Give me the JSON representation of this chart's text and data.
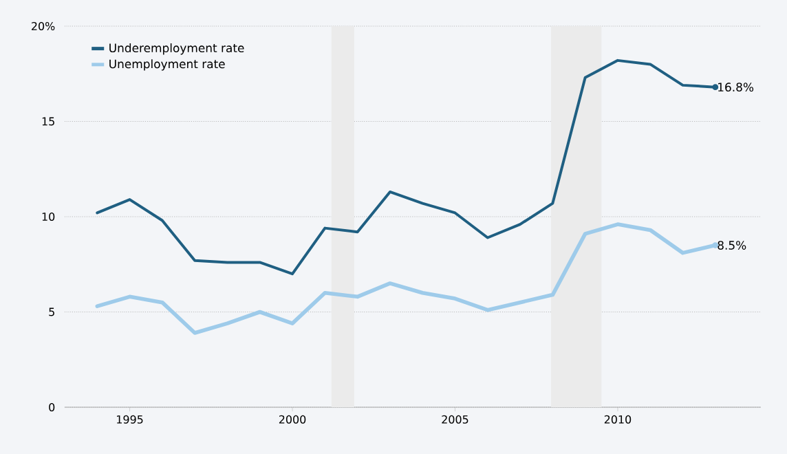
{
  "chart_data": {
    "type": "line",
    "x": [
      1994,
      1995,
      1996,
      1997,
      1998,
      1999,
      2000,
      2001,
      2002,
      2003,
      2004,
      2005,
      2006,
      2007,
      2008,
      2009,
      2010,
      2011,
      2012,
      2013
    ],
    "series": [
      {
        "name": "Underemployment rate",
        "color": "#1f5f82",
        "values": [
          10.2,
          10.9,
          9.8,
          7.7,
          7.6,
          7.6,
          7.0,
          9.4,
          9.2,
          11.3,
          10.7,
          10.2,
          8.9,
          9.6,
          10.7,
          17.3,
          18.2,
          18.0,
          16.9,
          16.8
        ],
        "value_labels": [
          null,
          null,
          null,
          null,
          null,
          null,
          null,
          null,
          null,
          null,
          null,
          null,
          null,
          null,
          null,
          null,
          null,
          null,
          null,
          "16.8%"
        ]
      },
      {
        "name": "Unemployment rate",
        "color": "#9ecbea",
        "values": [
          5.3,
          5.8,
          5.5,
          3.9,
          4.4,
          5.0,
          4.4,
          6.0,
          5.8,
          6.5,
          6.0,
          5.7,
          5.1,
          5.5,
          5.9,
          9.1,
          9.6,
          9.3,
          8.1,
          8.5
        ],
        "value_labels": [
          null,
          null,
          null,
          null,
          null,
          null,
          null,
          null,
          null,
          null,
          null,
          null,
          null,
          null,
          null,
          null,
          null,
          null,
          null,
          "8.5%"
        ]
      }
    ],
    "xlim": [
      1993,
      2014.4
    ],
    "xticks": [
      1995,
      2000,
      2005,
      2010
    ],
    "ylim": [
      0,
      20
    ],
    "yticks": [
      0,
      5,
      10,
      15,
      {
        "value": 20,
        "label": "20%"
      }
    ],
    "bands": [
      {
        "axis": "x",
        "from": 2001.2,
        "to": 2001.9,
        "color": "#ebebeb"
      },
      {
        "axis": "x",
        "from": 2007.95,
        "to": 2009.5,
        "color": "#ebebeb"
      }
    ],
    "grid": "y",
    "legend": "top left",
    "marker": "none",
    "line_style": "solid"
  }
}
